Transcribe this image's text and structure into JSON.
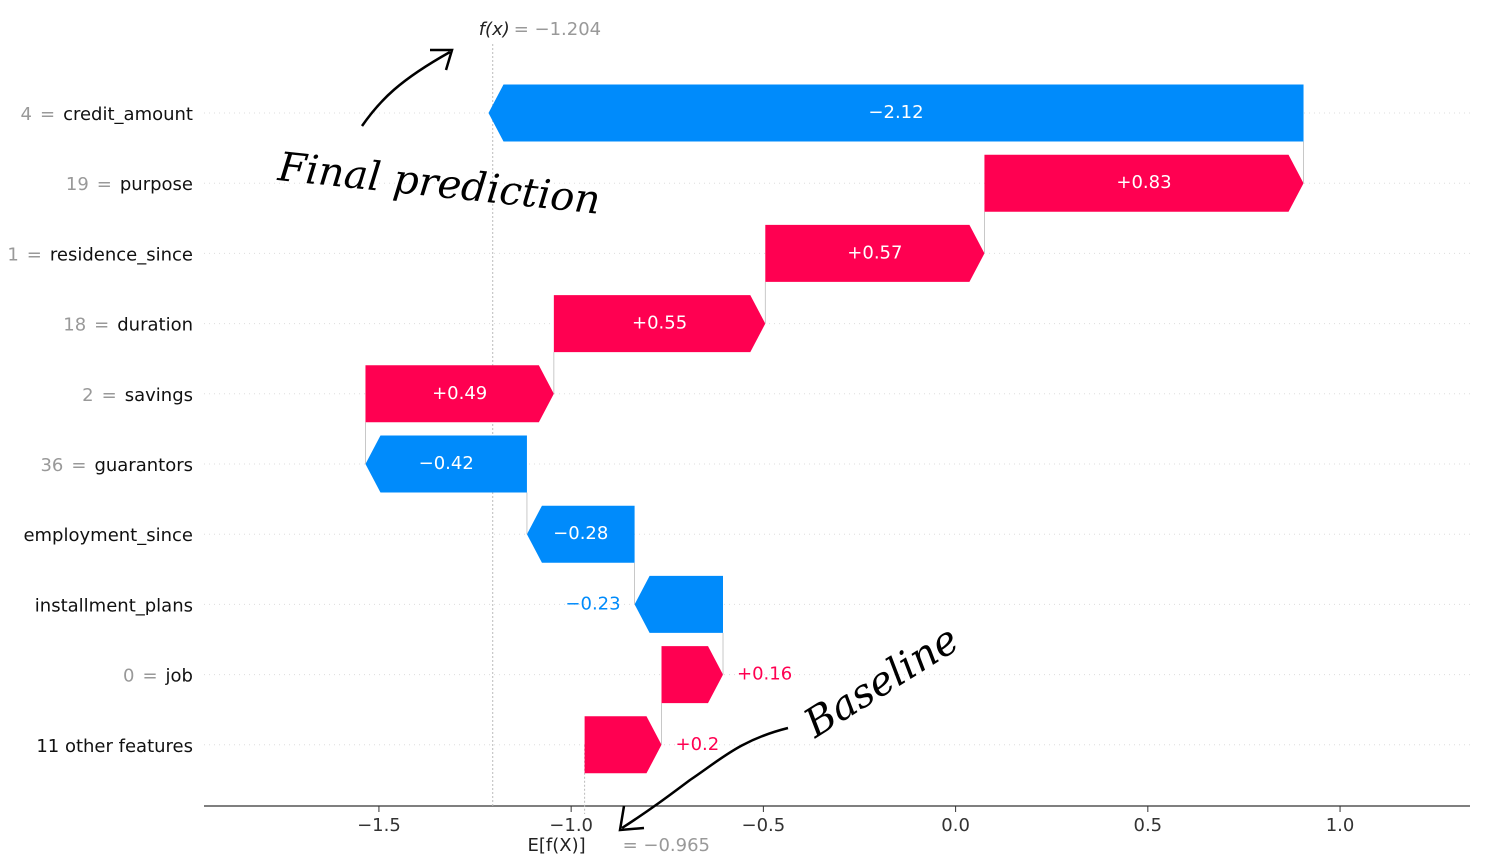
{
  "chart_data": {
    "type": "waterfall",
    "feature_values": [
      "4",
      "19",
      "1",
      "18",
      "2",
      "36",
      null,
      null,
      "0",
      null
    ],
    "feature_names": [
      "credit_amount",
      "purpose",
      "residence_since",
      "duration",
      "savings",
      "guarantors",
      "employment_since",
      "installment_plans",
      "job",
      "11 other features"
    ],
    "values": [
      -2.12,
      0.83,
      0.57,
      0.55,
      0.49,
      -0.42,
      -0.28,
      -0.23,
      0.16,
      0.2
    ],
    "value_labels": [
      "−2.12",
      "+0.83",
      "+0.57",
      "+0.55",
      "+0.49",
      "−0.42",
      "−0.28",
      "−0.23",
      "+0.16",
      "+0.2"
    ],
    "positive_color": "#ff0051",
    "negative_color": "#008bfb",
    "base": {
      "value": -0.965,
      "label": "= −0.965"
    },
    "base_name": "E[f(X)]",
    "fx": {
      "value": -1.204,
      "label": "= −1.204"
    },
    "fx_name": "f(x)",
    "xlim": [
      -1.955,
      1.338
    ],
    "xticks": [
      {
        "value": -1.5,
        "label": "−1.5"
      },
      {
        "value": -1,
        "label": "−1.0"
      },
      {
        "value": -0.5,
        "label": "−0.5"
      },
      {
        "value": 0,
        "label": "0.0"
      },
      0.5,
      {
        "value": 1,
        "label": "1.0"
      }
    ],
    "annotations": [
      "Final prediction",
      "Baseline"
    ]
  }
}
